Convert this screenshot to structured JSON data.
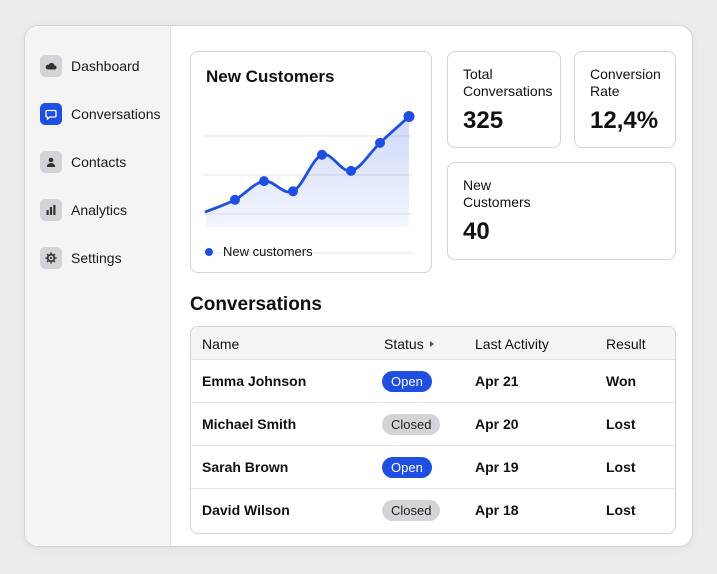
{
  "sidebar": {
    "items": [
      {
        "label": "Dashboard",
        "icon": "cloud-icon",
        "active": false
      },
      {
        "label": "Conversations",
        "icon": "chat-bubble-icon",
        "active": true
      },
      {
        "label": "Contacts",
        "icon": "person-icon",
        "active": false
      },
      {
        "label": "Analytics",
        "icon": "bar-chart-icon",
        "active": false
      },
      {
        "label": "Settings",
        "icon": "gear-icon",
        "active": false
      }
    ]
  },
  "chart_card": {
    "title": "New Customers",
    "legend": "New customers"
  },
  "chart_data": {
    "type": "area",
    "title": "New Customers",
    "series": [
      {
        "name": "New customers",
        "values": [
          18,
          32,
          54,
          42,
          85,
          66,
          99,
          130
        ]
      }
    ],
    "ylim": [
      0,
      140
    ],
    "grid": true,
    "legend_position": "bottom-left",
    "color": "#1f4fe0"
  },
  "stats": {
    "total_conversations": {
      "label": "Total Conversations",
      "value": "325"
    },
    "conversion_rate": {
      "label": "Conversion Rate",
      "value": "12,4%"
    },
    "new_customers": {
      "label": "New Customers",
      "value": "40"
    }
  },
  "conversations": {
    "title": "Conversations",
    "columns": [
      "Name",
      "Status",
      "Last Activity",
      "Result"
    ],
    "rows": [
      {
        "name": "Emma Johnson",
        "status": "Open",
        "last_activity": "Apr 21",
        "result": "Won"
      },
      {
        "name": "Michael Smith",
        "status": "Closed",
        "last_activity": "Apr 20",
        "result": "Lost"
      },
      {
        "name": "Sarah Brown",
        "status": "Open",
        "last_activity": "Apr 19",
        "result": "Lost"
      },
      {
        "name": "David Wilson",
        "status": "Closed",
        "last_activity": "Apr 18",
        "result": "Lost"
      }
    ]
  },
  "colors": {
    "accent": "#1f4fe0",
    "badge_closed": "#d4d4d8"
  }
}
